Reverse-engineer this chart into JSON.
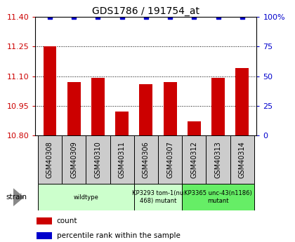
{
  "title": "GDS1786 / 191754_at",
  "samples": [
    "GSM40308",
    "GSM40309",
    "GSM40310",
    "GSM40311",
    "GSM40306",
    "GSM40307",
    "GSM40312",
    "GSM40313",
    "GSM40314"
  ],
  "count_values": [
    11.25,
    11.07,
    11.09,
    10.92,
    11.06,
    11.07,
    10.87,
    11.09,
    11.14
  ],
  "percentile_values": [
    100,
    100,
    100,
    100,
    100,
    100,
    100,
    100,
    100
  ],
  "ylim_left": [
    10.8,
    11.4
  ],
  "ylim_right": [
    0,
    100
  ],
  "yticks_left": [
    10.8,
    10.95,
    11.1,
    11.25,
    11.4
  ],
  "yticks_right": [
    0,
    25,
    50,
    75,
    100
  ],
  "bar_color": "#cc0000",
  "dot_color": "#0000cc",
  "grid_color": "#000000",
  "bg_color": "#ffffff",
  "group_spans": [
    {
      "start": 0,
      "end": 3,
      "label": "wildtype",
      "color": "#ccffcc"
    },
    {
      "start": 4,
      "end": 5,
      "label": "KP3293 tom-1(nu\n468) mutant",
      "color": "#ccffcc"
    },
    {
      "start": 6,
      "end": 8,
      "label": "KP3365 unc-43(n1186)\nmutant",
      "color": "#66ee66"
    }
  ],
  "legend_items": [
    {
      "label": "count",
      "color": "#cc0000",
      "marker": "s"
    },
    {
      "label": "percentile rank within the sample",
      "color": "#0000cc",
      "marker": "s"
    }
  ],
  "strain_label": "strain",
  "tick_color_left": "#cc0000",
  "tick_color_right": "#0000cc",
  "label_fontsize": 7,
  "tick_fontsize": 8,
  "title_fontsize": 10,
  "bar_width": 0.55
}
